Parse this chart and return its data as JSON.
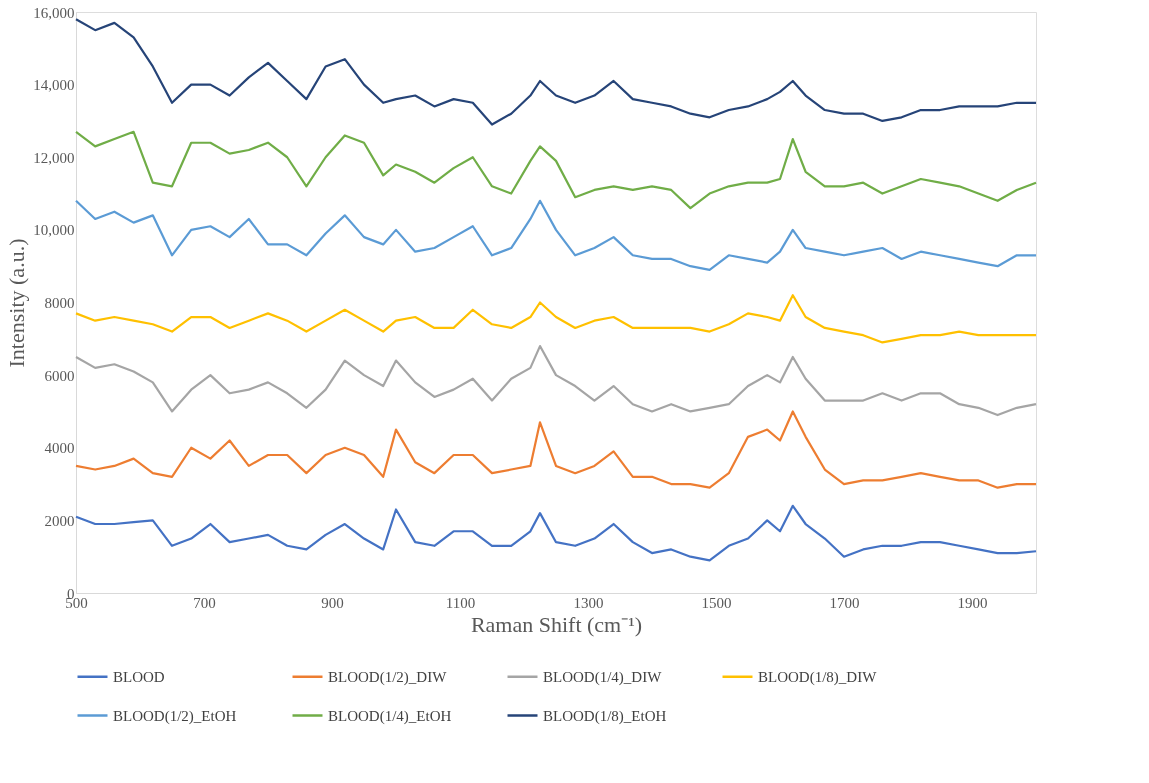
{
  "chart_data": {
    "type": "line",
    "xlabel": "Raman Shift (cm⁻¹)",
    "ylabel": "Intensity (a.u.)",
    "x": [
      500,
      530,
      560,
      590,
      620,
      650,
      680,
      710,
      740,
      770,
      800,
      830,
      860,
      890,
      920,
      950,
      980,
      1000,
      1030,
      1060,
      1090,
      1120,
      1150,
      1180,
      1210,
      1225,
      1250,
      1280,
      1310,
      1340,
      1370,
      1400,
      1430,
      1460,
      1490,
      1520,
      1550,
      1580,
      1600,
      1620,
      1640,
      1670,
      1700,
      1730,
      1760,
      1790,
      1820,
      1850,
      1880,
      1910,
      1940,
      1970,
      2000
    ],
    "series": [
      {
        "name": "BLOOD",
        "color": "#4472c4",
        "values": [
          2100,
          1900,
          1900,
          1950,
          2000,
          1300,
          1500,
          1900,
          1400,
          1500,
          1600,
          1300,
          1200,
          1600,
          1900,
          1500,
          1200,
          2300,
          1400,
          1300,
          1700,
          1700,
          1300,
          1300,
          1700,
          2200,
          1400,
          1300,
          1500,
          1900,
          1400,
          1100,
          1200,
          1000,
          900,
          1300,
          1500,
          2000,
          1700,
          2400,
          1900,
          1500,
          1000,
          1200,
          1300,
          1300,
          1400,
          1400,
          1300,
          1200,
          1100,
          1100,
          1150
        ]
      },
      {
        "name": "BLOOD(1/2)_DIW",
        "color": "#ed7d31",
        "values": [
          3500,
          3400,
          3500,
          3700,
          3300,
          3200,
          4000,
          3700,
          4200,
          3500,
          3800,
          3800,
          3300,
          3800,
          4000,
          3800,
          3200,
          4500,
          3600,
          3300,
          3800,
          3800,
          3300,
          3400,
          3500,
          4700,
          3500,
          3300,
          3500,
          3900,
          3200,
          3200,
          3000,
          3000,
          2900,
          3300,
          4300,
          4500,
          4200,
          5000,
          4300,
          3400,
          3000,
          3100,
          3100,
          3200,
          3300,
          3200,
          3100,
          3100,
          2900,
          3000,
          3000
        ]
      },
      {
        "name": "BLOOD(1/4)_DIW",
        "color": "#a5a5a5",
        "values": [
          6500,
          6200,
          6300,
          6100,
          5800,
          5000,
          5600,
          6000,
          5500,
          5600,
          5800,
          5500,
          5100,
          5600,
          6400,
          6000,
          5700,
          6400,
          5800,
          5400,
          5600,
          5900,
          5300,
          5900,
          6200,
          6800,
          6000,
          5700,
          5300,
          5700,
          5200,
          5000,
          5200,
          5000,
          5100,
          5200,
          5700,
          6000,
          5800,
          6500,
          5900,
          5300,
          5300,
          5300,
          5500,
          5300,
          5500,
          5500,
          5200,
          5100,
          4900,
          5100,
          5200
        ]
      },
      {
        "name": "BLOOD(1/8)_DIW",
        "color": "#ffc000",
        "values": [
          7700,
          7500,
          7600,
          7500,
          7400,
          7200,
          7600,
          7600,
          7300,
          7500,
          7700,
          7500,
          7200,
          7500,
          7800,
          7500,
          7200,
          7500,
          7600,
          7300,
          7300,
          7800,
          7400,
          7300,
          7600,
          8000,
          7600,
          7300,
          7500,
          7600,
          7300,
          7300,
          7300,
          7300,
          7200,
          7400,
          7700,
          7600,
          7500,
          8200,
          7600,
          7300,
          7200,
          7100,
          6900,
          7000,
          7100,
          7100,
          7200,
          7100,
          7100,
          7100,
          7100
        ]
      },
      {
        "name": "BLOOD(1/2)_EtOH",
        "color": "#5b9bd5",
        "values": [
          10800,
          10300,
          10500,
          10200,
          10400,
          9300,
          10000,
          10100,
          9800,
          10300,
          9600,
          9600,
          9300,
          9900,
          10400,
          9800,
          9600,
          10000,
          9400,
          9500,
          9800,
          10100,
          9300,
          9500,
          10300,
          10800,
          10000,
          9300,
          9500,
          9800,
          9300,
          9200,
          9200,
          9000,
          8900,
          9300,
          9200,
          9100,
          9400,
          10000,
          9500,
          9400,
          9300,
          9400,
          9500,
          9200,
          9400,
          9300,
          9200,
          9100,
          9000,
          9300,
          9300
        ]
      },
      {
        "name": "BLOOD(1/4)_EtOH",
        "color": "#70ad47",
        "values": [
          12700,
          12300,
          12500,
          12700,
          11300,
          11200,
          12400,
          12400,
          12100,
          12200,
          12400,
          12000,
          11200,
          12000,
          12600,
          12400,
          11500,
          11800,
          11600,
          11300,
          11700,
          12000,
          11200,
          11000,
          11900,
          12300,
          11900,
          10900,
          11100,
          11200,
          11100,
          11200,
          11100,
          10600,
          11000,
          11200,
          11300,
          11300,
          11400,
          12500,
          11600,
          11200,
          11200,
          11300,
          11000,
          11200,
          11400,
          11300,
          11200,
          11000,
          10800,
          11100,
          11300
        ]
      },
      {
        "name": "BLOOD(1/8)_EtOH",
        "color": "#264478",
        "values": [
          15800,
          15500,
          15700,
          15300,
          14500,
          13500,
          14000,
          14000,
          13700,
          14200,
          14600,
          14100,
          13600,
          14500,
          14700,
          14000,
          13500,
          13600,
          13700,
          13400,
          13600,
          13500,
          12900,
          13200,
          13700,
          14100,
          13700,
          13500,
          13700,
          14100,
          13600,
          13500,
          13400,
          13200,
          13100,
          13300,
          13400,
          13600,
          13800,
          14100,
          13700,
          13300,
          13200,
          13200,
          13000,
          13100,
          13300,
          13300,
          13400,
          13400,
          13400,
          13500,
          13500
        ]
      }
    ],
    "xlim": [
      500,
      2000
    ],
    "xticks": [
      500,
      700,
      900,
      1100,
      1300,
      1500,
      1700,
      1900
    ],
    "ylim": [
      0,
      16000
    ],
    "yticks": [
      0,
      {
        "value": 2000,
        "label": "2000"
      },
      {
        "value": 4000,
        "label": "4000"
      },
      {
        "value": 6000,
        "label": "6000"
      },
      {
        "value": 8000,
        "label": "8000"
      },
      {
        "value": 10000,
        "label": "10,000"
      },
      {
        "value": 12000,
        "label": "12,000"
      },
      {
        "value": 14000,
        "label": "14,000"
      },
      {
        "value": 16000,
        "label": "16,000"
      }
    ],
    "grid": false,
    "legend": "bottom",
    "marker": "none",
    "line_style": "solid"
  }
}
